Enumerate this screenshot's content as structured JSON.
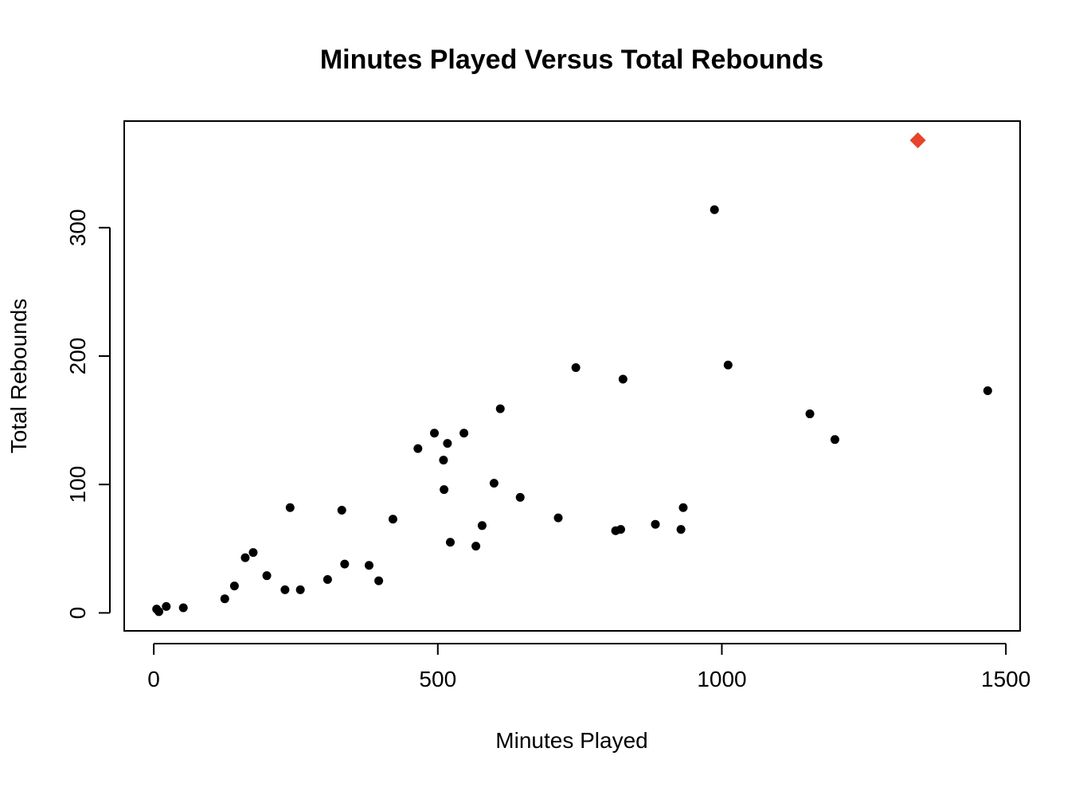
{
  "chart_data": {
    "type": "scatter",
    "title": "Minutes Played Versus Total Rebounds",
    "xlabel": "Minutes Played",
    "ylabel": "Total Rebounds",
    "xlim": [
      -52,
      1525
    ],
    "ylim": [
      -14,
      383
    ],
    "xticks": [
      0,
      500,
      1000,
      1500
    ],
    "xtick_labels": [
      "0",
      "500",
      "1000",
      "1500"
    ],
    "yticks": [
      0,
      100,
      200,
      300
    ],
    "ytick_labels": [
      "0",
      "100",
      "200",
      "300"
    ],
    "grid": false,
    "legend": null,
    "series": [
      {
        "marker": "circle",
        "color": "#000000",
        "points": [
          [
            5,
            3
          ],
          [
            9,
            1
          ],
          [
            22,
            5
          ],
          [
            52,
            4
          ],
          [
            125,
            11
          ],
          [
            142,
            21
          ],
          [
            161,
            43
          ],
          [
            175,
            47
          ],
          [
            199,
            29
          ],
          [
            231,
            18
          ],
          [
            240,
            82
          ],
          [
            258,
            18
          ],
          [
            306,
            26
          ],
          [
            331,
            80
          ],
          [
            336,
            38
          ],
          [
            379,
            37
          ],
          [
            396,
            25
          ],
          [
            421,
            73
          ],
          [
            465,
            128
          ],
          [
            494,
            140
          ],
          [
            510,
            119
          ],
          [
            511,
            96
          ],
          [
            517,
            132
          ],
          [
            522,
            55
          ],
          [
            546,
            140
          ],
          [
            567,
            52
          ],
          [
            578,
            68
          ],
          [
            599,
            101
          ],
          [
            610,
            159
          ],
          [
            645,
            90
          ],
          [
            712,
            74
          ],
          [
            743,
            191
          ],
          [
            813,
            64
          ],
          [
            822,
            65
          ],
          [
            826,
            182
          ],
          [
            883,
            69
          ],
          [
            928,
            65
          ],
          [
            932,
            82
          ],
          [
            987,
            314
          ],
          [
            1011,
            193
          ],
          [
            1155,
            155
          ],
          [
            1199,
            135
          ],
          [
            1468,
            173
          ]
        ]
      },
      {
        "marker": "diamond",
        "color": "#E8432B",
        "points": [
          [
            1345,
            368
          ]
        ]
      }
    ]
  }
}
